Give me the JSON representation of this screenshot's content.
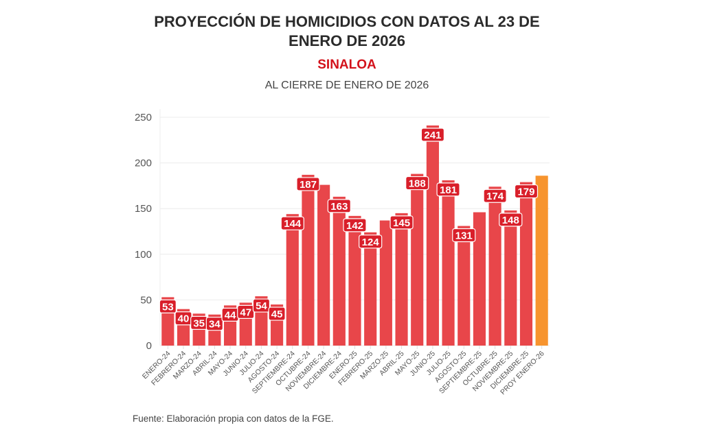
{
  "header": {
    "title_line1": "PROYECCIÓN DE HOMICIDIOS CON DATOS AL 23 DE",
    "title_line2": "ENERO DE 2026",
    "state": "SINALOA",
    "subtitle": "AL CIERRE DE ENERO DE 2026"
  },
  "footer": {
    "source": "Fuente: Elaboración propia con datos de la FGE."
  },
  "colors": {
    "bar": "#e8464a",
    "projection": "#f7942e",
    "label_bg": "#d91f2a",
    "label_text": "#ffffff"
  },
  "chart_data": {
    "type": "bar",
    "title": "PROYECCIÓN DE HOMICIDIOS CON DATOS AL 23 DE ENERO DE 2026",
    "subtitle": "SINALOA — AL CIERRE DE ENERO DE 2026",
    "xlabel": "",
    "ylabel": "",
    "ylim": [
      0,
      250
    ],
    "yticks": [
      0,
      50,
      100,
      150,
      200,
      250
    ],
    "grid": true,
    "legend": "none",
    "categories": [
      "ENERO-24",
      "FEBRERO-24",
      "MARZO-24",
      "ABRIL-24",
      "MAYO-24",
      "JUNIO-24",
      "JULIO-24",
      "AGOSTO-24",
      "SEPTIEMBRE-24",
      "OCTUBRE-24",
      "NOVIEMBRE-24",
      "DICIEMBRE-24",
      "ENERO-25",
      "FEBRERO-25",
      "MARZO-25",
      "ABRIL-25",
      "MAYO-25",
      "JUNIO-25",
      "JULIO-25",
      "AGOSTO-25",
      "SEPTIEMBRE-25",
      "OCTUBRE-25",
      "NOVIEMBRE-25",
      "DICIEMBRE-25",
      "PROY ENERO-26"
    ],
    "values": [
      53,
      40,
      35,
      34,
      44,
      47,
      54,
      45,
      144,
      187,
      176,
      163,
      142,
      124,
      137,
      145,
      188,
      241,
      181,
      131,
      146,
      174,
      148,
      179,
      186
    ],
    "data_labels": [
      "53",
      "40",
      "35",
      "34",
      "44",
      "47",
      "54",
      "45",
      "144",
      "187",
      "",
      "163",
      "142",
      "124",
      "",
      "145",
      "188",
      "241",
      "181",
      "131",
      "",
      "174",
      "148",
      "179",
      ""
    ],
    "projection_index": 24
  }
}
